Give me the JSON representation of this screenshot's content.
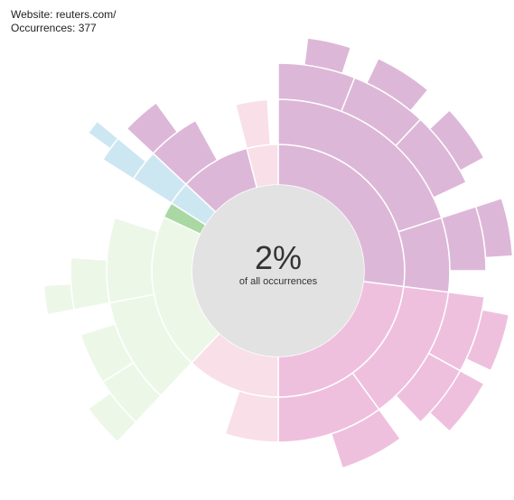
{
  "breadcrumb": {
    "website_prefix": "Website: ",
    "website": "reuters.com/",
    "occurrences_prefix": "Occurrences: ",
    "occurrences": "377"
  },
  "center": {
    "percentage": "2%",
    "caption": "of all occurrences"
  },
  "colors": {
    "purple": "#ddb7d8",
    "pink": "#efc0de",
    "light-pink": "#f8dfe8",
    "green-light": "#edf7e8",
    "green": "#a9d8a2",
    "blue": "#cde7f2",
    "center": "#e2e2e2",
    "stroke": "#ffffff"
  },
  "chart_data": {
    "type": "sunburst",
    "title": "",
    "center_value": "2%",
    "center_label": "of all occurrences",
    "rings": [
      [
        {
          "start": 0.0,
          "end": 0.27,
          "color": "purple"
        },
        {
          "start": 0.27,
          "end": 0.5,
          "color": "pink"
        },
        {
          "start": 0.5,
          "end": 0.62,
          "color": "light-pink"
        },
        {
          "start": 0.62,
          "end": 0.82,
          "color": "green-light"
        },
        {
          "start": 0.82,
          "end": 0.84,
          "color": "green"
        },
        {
          "start": 0.84,
          "end": 0.87,
          "color": "blue"
        },
        {
          "start": 0.87,
          "end": 0.96,
          "color": "purple"
        },
        {
          "start": 0.96,
          "end": 1.0,
          "color": "light-pink"
        }
      ],
      [
        {
          "start": 0.0,
          "end": 0.2,
          "color": "purple"
        },
        {
          "start": 0.2,
          "end": 0.27,
          "color": "purple"
        },
        {
          "start": 0.27,
          "end": 0.4,
          "color": "pink"
        },
        {
          "start": 0.4,
          "end": 0.5,
          "color": "pink"
        },
        {
          "start": 0.5,
          "end": 0.55,
          "color": "light-pink"
        },
        {
          "start": 0.62,
          "end": 0.72,
          "color": "green-light"
        },
        {
          "start": 0.72,
          "end": 0.8,
          "color": "green-light"
        },
        {
          "start": 0.84,
          "end": 0.87,
          "color": "blue"
        },
        {
          "start": 0.87,
          "end": 0.92,
          "color": "purple"
        },
        {
          "start": 0.96,
          "end": 0.99,
          "color": "light-pink"
        }
      ],
      [
        {
          "start": 0.0,
          "end": 0.06,
          "color": "purple"
        },
        {
          "start": 0.06,
          "end": 0.12,
          "color": "purple"
        },
        {
          "start": 0.12,
          "end": 0.18,
          "color": "purple"
        },
        {
          "start": 0.2,
          "end": 0.25,
          "color": "purple"
        },
        {
          "start": 0.27,
          "end": 0.33,
          "color": "pink"
        },
        {
          "start": 0.33,
          "end": 0.38,
          "color": "pink"
        },
        {
          "start": 0.4,
          "end": 0.45,
          "color": "pink"
        },
        {
          "start": 0.62,
          "end": 0.66,
          "color": "green-light"
        },
        {
          "start": 0.66,
          "end": 0.7,
          "color": "green-light"
        },
        {
          "start": 0.72,
          "end": 0.76,
          "color": "green-light"
        },
        {
          "start": 0.84,
          "end": 0.86,
          "color": "blue"
        },
        {
          "start": 0.87,
          "end": 0.9,
          "color": "purple"
        }
      ],
      [
        {
          "start": 0.02,
          "end": 0.05,
          "color": "purple"
        },
        {
          "start": 0.07,
          "end": 0.11,
          "color": "purple"
        },
        {
          "start": 0.13,
          "end": 0.17,
          "color": "purple"
        },
        {
          "start": 0.2,
          "end": 0.24,
          "color": "purple"
        },
        {
          "start": 0.28,
          "end": 0.32,
          "color": "pink"
        },
        {
          "start": 0.33,
          "end": 0.37,
          "color": "pink"
        },
        {
          "start": 0.62,
          "end": 0.65,
          "color": "green-light"
        },
        {
          "start": 0.72,
          "end": 0.74,
          "color": "green-light"
        },
        {
          "start": 0.85,
          "end": 0.86,
          "color": "blue"
        }
      ]
    ]
  }
}
